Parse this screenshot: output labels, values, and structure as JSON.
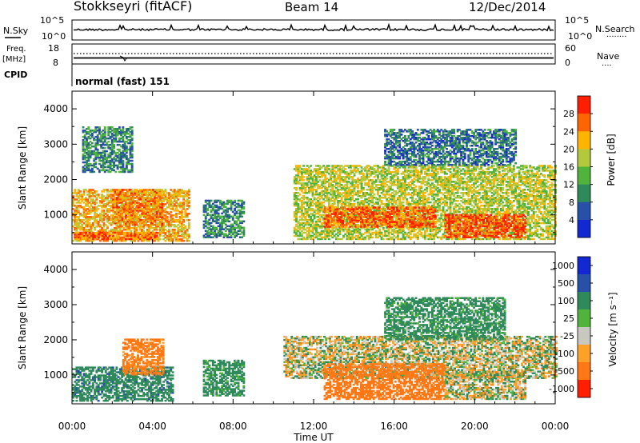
{
  "header": {
    "station": "Stokkseyri (fitACF)",
    "beam": "Beam 14",
    "date": "12/Dec/2014"
  },
  "nsky_panel": {
    "left_label": "N.Sky",
    "right_label": "N.Search",
    "right_legend_marker": "........",
    "left_ticks": [
      "10^5",
      "10^0"
    ],
    "right_ticks": [
      "10^5",
      "10^0"
    ]
  },
  "freq_panel": {
    "left_label_top": "Freq.",
    "left_label_unit": "[MHz]",
    "right_label": "Nave",
    "right_legend_marker": "....",
    "left_ticks": [
      "18",
      "8"
    ],
    "right_ticks": [
      "60",
      "0"
    ]
  },
  "cpid_panel": {
    "label": "CPID",
    "text": "normal (fast) 151"
  },
  "colors": {
    "power_scale": [
      "#1428d2",
      "#2850a8",
      "#2e8a5a",
      "#50b43c",
      "#b4c83c",
      "#ffb400",
      "#ff6400",
      "#ff1e00"
    ],
    "velocity_scale": [
      "#1428d2",
      "#2850a8",
      "#2e8a5a",
      "#50b43c",
      "#c8c8c0",
      "#ffa028",
      "#ff7814",
      "#ff1e00"
    ]
  },
  "chart_data": [
    {
      "type": "heatmap",
      "title": "",
      "xlabel": "Time UT",
      "ylabel": "Slant Range [km]",
      "xlim": [
        "00:00",
        "24:00"
      ],
      "ylim": [
        180,
        4500
      ],
      "yticks": [
        "1000",
        "2000",
        "3000",
        "4000"
      ],
      "xticks": [
        "00:00",
        "04:00",
        "08:00",
        "12:00",
        "16:00",
        "20:00",
        "00:00"
      ],
      "colorbar": {
        "label": "Power [dB]",
        "ticks": [
          "4",
          "8",
          "12",
          "16",
          "20",
          "24",
          "28"
        ],
        "range": [
          0,
          30
        ]
      },
      "echo_regions": [
        {
          "t_start_h": 0.0,
          "t_end_h": 5.8,
          "range_min_km": 250,
          "range_max_km": 1700,
          "value_db": 22
        },
        {
          "t_start_h": 0.1,
          "t_end_h": 4.2,
          "range_min_km": 300,
          "range_max_km": 500,
          "value_db": 26
        },
        {
          "t_start_h": 2.0,
          "t_end_h": 4.5,
          "range_min_km": 700,
          "range_max_km": 1700,
          "value_db": 24
        },
        {
          "t_start_h": 0.5,
          "t_end_h": 3.0,
          "range_min_km": 2200,
          "range_max_km": 3500,
          "value_db": 10
        },
        {
          "t_start_h": 6.5,
          "t_end_h": 8.5,
          "range_min_km": 350,
          "range_max_km": 1400,
          "value_db": 10
        },
        {
          "t_start_h": 11.0,
          "t_end_h": 24.0,
          "range_min_km": 300,
          "range_max_km": 2400,
          "value_db": 18
        },
        {
          "t_start_h": 12.5,
          "t_end_h": 18.0,
          "range_min_km": 650,
          "range_max_km": 1200,
          "value_db": 27
        },
        {
          "t_start_h": 18.5,
          "t_end_h": 22.5,
          "range_min_km": 350,
          "range_max_km": 1000,
          "value_db": 28
        },
        {
          "t_start_h": 15.5,
          "t_end_h": 22.0,
          "range_min_km": 2400,
          "range_max_km": 3400,
          "value_db": 8
        }
      ]
    },
    {
      "type": "heatmap",
      "title": "",
      "xlabel": "Time UT",
      "ylabel": "Slant Range [km]",
      "xlim": [
        "00:00",
        "24:00"
      ],
      "ylim": [
        180,
        4500
      ],
      "yticks": [
        "1000",
        "2000",
        "3000",
        "4000"
      ],
      "xticks": [
        "00:00",
        "04:00",
        "08:00",
        "12:00",
        "16:00",
        "20:00",
        "00:00"
      ],
      "colorbar": {
        "label": "Velocity [m s⁻¹]",
        "ticks": [
          "1000",
          "500",
          "100",
          "25",
          "-25",
          "-100",
          "-500",
          "-1000"
        ]
      },
      "echo_regions": [
        {
          "t_start_h": 0.0,
          "t_end_h": 5.0,
          "range_min_km": 250,
          "range_max_km": 1200,
          "value_ms": 200
        },
        {
          "t_start_h": 2.5,
          "t_end_h": 4.5,
          "range_min_km": 1000,
          "range_max_km": 2000,
          "value_ms": -200
        },
        {
          "t_start_h": 6.5,
          "t_end_h": 8.5,
          "range_min_km": 400,
          "range_max_km": 1400,
          "value_ms": 150
        },
        {
          "t_start_h": 10.5,
          "t_end_h": 24.0,
          "range_min_km": 900,
          "range_max_km": 2100,
          "value_ms": 0
        },
        {
          "t_start_h": 12.5,
          "t_end_h": 18.5,
          "range_min_km": 300,
          "range_max_km": 1300,
          "value_ms": -300
        },
        {
          "t_start_h": 18.5,
          "t_end_h": 22.5,
          "range_min_km": 300,
          "range_max_km": 1100,
          "value_ms": 0
        },
        {
          "t_start_h": 15.5,
          "t_end_h": 21.5,
          "range_min_km": 2000,
          "range_max_km": 3200,
          "value_ms": 150
        }
      ]
    }
  ]
}
